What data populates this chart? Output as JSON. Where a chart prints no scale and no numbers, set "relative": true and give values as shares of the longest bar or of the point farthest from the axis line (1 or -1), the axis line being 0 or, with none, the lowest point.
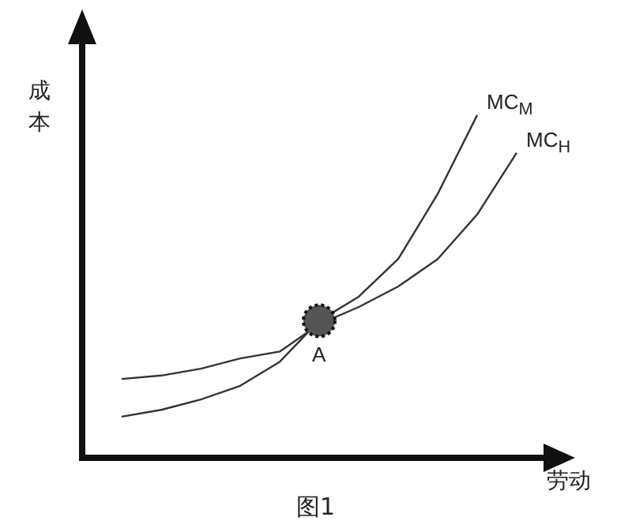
{
  "chart_data": {
    "type": "line",
    "title": "图1",
    "xlabel": "劳动",
    "ylabel": "成本",
    "relative": true,
    "categories": [
      null,
      null,
      null,
      null,
      null,
      null,
      null,
      null,
      null,
      null,
      null
    ],
    "series": [
      {
        "name": "MC$_{M}$",
        "color": "#333333",
        "values": [
          0.12,
          0.14,
          0.17,
          0.21,
          0.28,
          0.4,
          0.47,
          0.58,
          0.77,
          1.0,
          null
        ]
      },
      {
        "name": "MC$_{H}$",
        "color": "#333333",
        "values": [
          0.23,
          0.24,
          0.26,
          0.29,
          0.31,
          0.39,
          0.44,
          0.5,
          0.58,
          0.71,
          0.89
        ]
      }
    ],
    "annotations": [
      {
        "text": "A",
        "y": 0.4
      }
    ]
  }
}
